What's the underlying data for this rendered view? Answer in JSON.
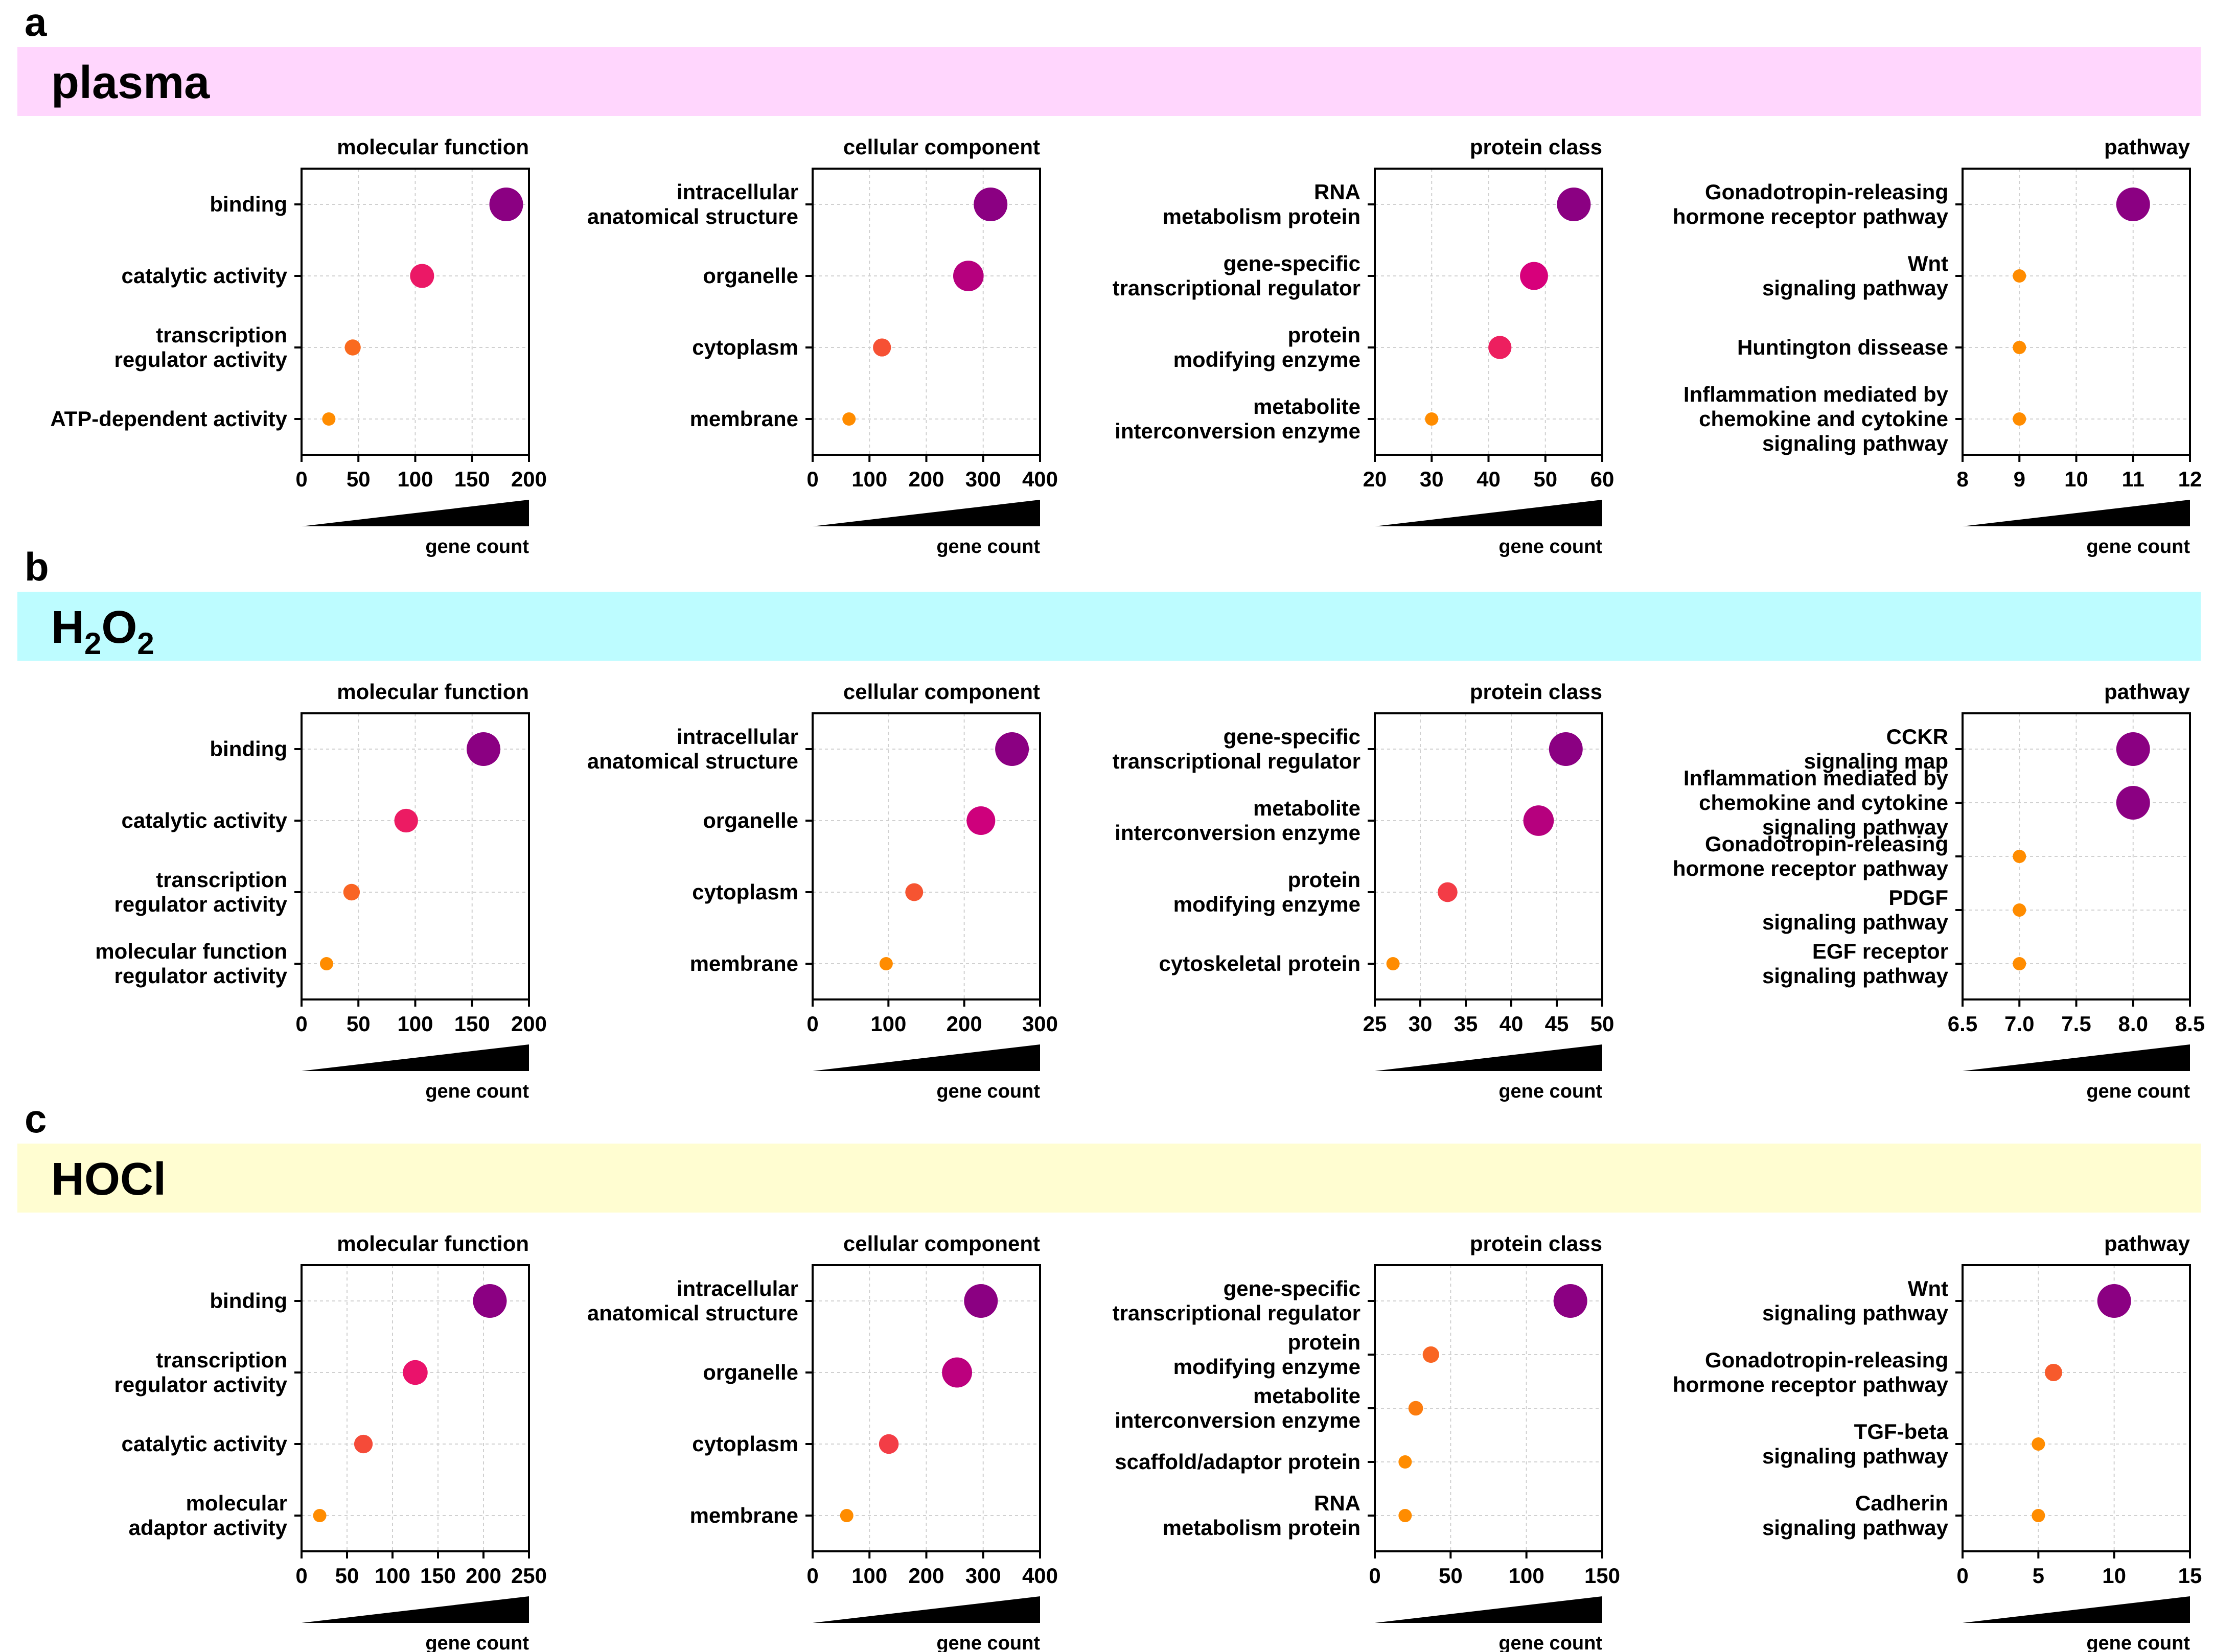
{
  "figure": {
    "panels": [
      {
        "letter": "a",
        "title": "plasma",
        "title_sub": "",
        "title_after": "",
        "band_color": "#ffd6fd"
      },
      {
        "letter": "b",
        "title": "H",
        "title_sub": "2",
        "title_after": "O",
        "title_sub2": "2",
        "band_color": "#bdfcff"
      },
      {
        "letter": "c",
        "title": "HOCl",
        "title_sub": "",
        "title_after": "",
        "band_color": "#fffdd1"
      }
    ],
    "wedge_label": "gene count",
    "color_ramp": [
      "#ff8c00",
      "#f2384a",
      "#e6007a",
      "#8b0082"
    ]
  },
  "chart_data": [
    {
      "panel": "a",
      "type": "scatter",
      "title": "molecular function",
      "xlabel": "gene count",
      "xlim": [
        0,
        200
      ],
      "xticks": [
        "0",
        "50",
        "100",
        "150",
        "200"
      ],
      "categories": [
        [
          "binding"
        ],
        [
          "catalytic activity"
        ],
        [
          "transcription",
          "regulator activity"
        ],
        [
          "ATP-dependent activity"
        ]
      ],
      "values": [
        180,
        106,
        45,
        24
      ]
    },
    {
      "panel": "a",
      "type": "scatter",
      "title": "cellular component",
      "xlabel": "gene count",
      "xlim": [
        0,
        400
      ],
      "xticks": [
        "0",
        "100",
        "200",
        "300",
        "400"
      ],
      "categories": [
        [
          "intracellular",
          "anatomical structure"
        ],
        [
          "organelle"
        ],
        [
          "cytoplasm"
        ],
        [
          "membrane"
        ]
      ],
      "values": [
        313,
        274,
        122,
        64
      ]
    },
    {
      "panel": "a",
      "type": "scatter",
      "title": "protein class",
      "xlabel": "gene count",
      "xlim": [
        20,
        60
      ],
      "xticks": [
        "20",
        "30",
        "40",
        "50",
        "60"
      ],
      "categories": [
        [
          "RNA",
          "metabolism protein"
        ],
        [
          "gene-specific",
          "transcriptional regulator"
        ],
        [
          "protein",
          "modifying enzyme"
        ],
        [
          "metabolite",
          "interconversion enzyme"
        ]
      ],
      "values": [
        55,
        48,
        42,
        30
      ]
    },
    {
      "panel": "a",
      "type": "scatter",
      "title": "pathway",
      "xlabel": "gene count",
      "xlim": [
        8,
        12
      ],
      "xticks": [
        "8",
        "9",
        "10",
        "11",
        "12"
      ],
      "categories": [
        [
          "Gonadotropin-releasing",
          "hormone receptor pathway"
        ],
        [
          "Wnt",
          "signaling pathway"
        ],
        [
          "Huntington dissease"
        ],
        [
          "Inflammation mediated by",
          "chemokine and cytokine",
          "signaling pathway"
        ]
      ],
      "values": [
        11,
        9,
        9,
        9
      ]
    },
    {
      "panel": "b",
      "type": "scatter",
      "title": "molecular function",
      "xlabel": "gene count",
      "xlim": [
        0,
        200
      ],
      "xticks": [
        "0",
        "50",
        "100",
        "150",
        "200"
      ],
      "categories": [
        [
          "binding"
        ],
        [
          "catalytic activity"
        ],
        [
          "transcription",
          "regulator activity"
        ],
        [
          "molecular function",
          "regulator activity"
        ]
      ],
      "values": [
        160,
        92,
        44,
        22
      ]
    },
    {
      "panel": "b",
      "type": "scatter",
      "title": "cellular component",
      "xlabel": "gene count",
      "xlim": [
        0,
        300
      ],
      "xticks": [
        "0",
        "100",
        "200",
        "300"
      ],
      "categories": [
        [
          "intracellular",
          "anatomical structure"
        ],
        [
          "organelle"
        ],
        [
          "cytoplasm"
        ],
        [
          "membrane"
        ]
      ],
      "values": [
        263,
        222,
        134,
        97
      ]
    },
    {
      "panel": "b",
      "type": "scatter",
      "title": "protein class",
      "xlabel": "gene count",
      "xlim": [
        25,
        50
      ],
      "xticks": [
        "25",
        "30",
        "35",
        "40",
        "45",
        "50"
      ],
      "categories": [
        [
          "gene-specific",
          "transcriptional regulator"
        ],
        [
          "metabolite",
          "interconversion enzyme"
        ],
        [
          "protein",
          "modifying enzyme"
        ],
        [
          "cytoskeletal protein"
        ]
      ],
      "values": [
        46,
        43,
        33,
        27
      ]
    },
    {
      "panel": "b",
      "type": "scatter",
      "title": "pathway",
      "xlabel": "gene count",
      "xlim": [
        6.5,
        8.5
      ],
      "xticks": [
        "6.5",
        "7.0",
        "7.5",
        "8.0",
        "8.5"
      ],
      "categories": [
        [
          "CCKR",
          "signaling map"
        ],
        [
          "Inflammation mediated by",
          "chemokine and cytokine",
          "signaling pathway"
        ],
        [
          "Gonadotropin-releasing",
          "hormone receptor pathway"
        ],
        [
          "PDGF",
          "signaling pathway"
        ],
        [
          "EGF receptor",
          "signaling pathway"
        ]
      ],
      "values": [
        8,
        8,
        7,
        7,
        7
      ]
    },
    {
      "panel": "c",
      "type": "scatter",
      "title": "molecular function",
      "xlabel": "gene count",
      "xlim": [
        0,
        250
      ],
      "xticks": [
        "0",
        "50",
        "100",
        "150",
        "200",
        "250"
      ],
      "categories": [
        [
          "binding"
        ],
        [
          "transcription",
          "regulator activity"
        ],
        [
          "catalytic activity"
        ],
        [
          "molecular",
          "adaptor activity"
        ]
      ],
      "values": [
        207,
        125,
        68,
        20
      ]
    },
    {
      "panel": "c",
      "type": "scatter",
      "title": "cellular component",
      "xlabel": "gene count",
      "xlim": [
        0,
        400
      ],
      "xticks": [
        "0",
        "100",
        "200",
        "300",
        "400"
      ],
      "categories": [
        [
          "intracellular",
          "anatomical structure"
        ],
        [
          "organelle"
        ],
        [
          "cytoplasm"
        ],
        [
          "membrane"
        ]
      ],
      "values": [
        296,
        254,
        134,
        60
      ]
    },
    {
      "panel": "c",
      "type": "scatter",
      "title": "protein class",
      "xlabel": "gene count",
      "xlim": [
        0,
        150
      ],
      "xticks": [
        "0",
        "50",
        "100",
        "150"
      ],
      "categories": [
        [
          "gene-specific",
          "transcriptional regulator"
        ],
        [
          "protein",
          "modifying enzyme"
        ],
        [
          "metabolite",
          "interconversion enzyme"
        ],
        [
          "scaffold/adaptor protein"
        ],
        [
          "RNA",
          "metabolism protein"
        ]
      ],
      "values": [
        129,
        37,
        27,
        20,
        20
      ]
    },
    {
      "panel": "c",
      "type": "scatter",
      "title": "pathway",
      "xlabel": "gene count",
      "xlim": [
        0,
        15
      ],
      "xticks": [
        "0",
        "5",
        "10",
        "15"
      ],
      "categories": [
        [
          "Wnt",
          "signaling pathway"
        ],
        [
          "Gonadotropin-releasing",
          "hormone receptor pathway"
        ],
        [
          "TGF-beta",
          "signaling pathway"
        ],
        [
          "Cadherin",
          "signaling pathway"
        ]
      ],
      "values": [
        10,
        6,
        5,
        5
      ]
    }
  ]
}
